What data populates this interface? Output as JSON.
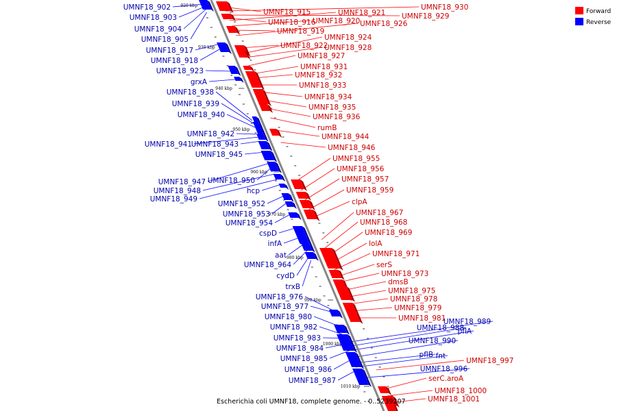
{
  "caption": "Escherichia coli UMNF18, complete genome. - 0..5239207",
  "legend": {
    "forward": {
      "label": "Forward",
      "color": "#ff0000"
    },
    "reverse": {
      "label": "Reverse",
      "color": "#0000ff"
    }
  },
  "colors": {
    "forward_label": "#cc0000",
    "reverse_label": "#0000aa",
    "backbone": "#888888"
  },
  "ticks": [
    "920 kbp",
    "930 kbp",
    "940 kbp",
    "950 kbp",
    "960 kbp",
    "970 kbp",
    "980 kbp",
    "990 kbp",
    "1000 kbp",
    "1010 kbp"
  ],
  "forward_labels": [
    "UMNF18_915",
    "UMNF18_916",
    "UMNF18_919",
    "UMNF18_922",
    "UMNF18_921",
    "UMNF18_920",
    "UMNF18_926",
    "UMNF18_930",
    "UMNF18_929",
    "UMNF18_924",
    "UMNF18_928",
    "UMNF18_927",
    "UMNF18_931",
    "UMNF18_932",
    "UMNF18_933",
    "UMNF18_934",
    "UMNF18_935",
    "UMNF18_936",
    "rumB",
    "UMNF18_944",
    "UMNF18_946",
    "UMNF18_955",
    "UMNF18_956",
    "UMNF18_957",
    "UMNF18_959",
    "clpA",
    "UMNF18_967",
    "UMNF18_968",
    "UMNF18_969",
    "lolA",
    "UMNF18_971",
    "serS",
    "UMNF18_973",
    "dmsB",
    "UMNF18_975",
    "UMNF18_978",
    "UMNF18_979",
    "UMNF18_981",
    "UMNF18_997",
    "serC.aroA",
    "UMNF18_1000",
    "UMNF18_1001"
  ],
  "reverse_labels": [
    "UMNF18_902",
    "UMNF18_903",
    "UMNF18_904",
    "UMNF18_905",
    "UMNF18_917",
    "UMNF18_918",
    "UMNF18_923",
    "grxA",
    "UMNF18_938",
    "UMNF18_939",
    "UMNF18_940",
    "UMNF18_942",
    "UMNF18_941",
    "UMNF18_943",
    "UMNF18_945",
    "UMNF18_947",
    "UMNF18_950",
    "UMNF18_948",
    "UMNF18_949",
    "hcp",
    "UMNF18_952",
    "UMNF18_953",
    "UMNF18_954",
    "cspD",
    "infA",
    "aat",
    "UMNF18_964",
    "cydD",
    "trxB",
    "UMNF18_976",
    "UMNF18_977",
    "UMNF18_980",
    "UMNF18_982",
    "UMNF18_983",
    "UMNF18_984",
    "UMNF18_985",
    "UMNF18_986",
    "UMNF18_987",
    "UMNF18_989",
    "UMNF18_988",
    "pflA",
    "UMNF18_990",
    "pflB",
    "fnt",
    "UMNF18_996"
  ]
}
